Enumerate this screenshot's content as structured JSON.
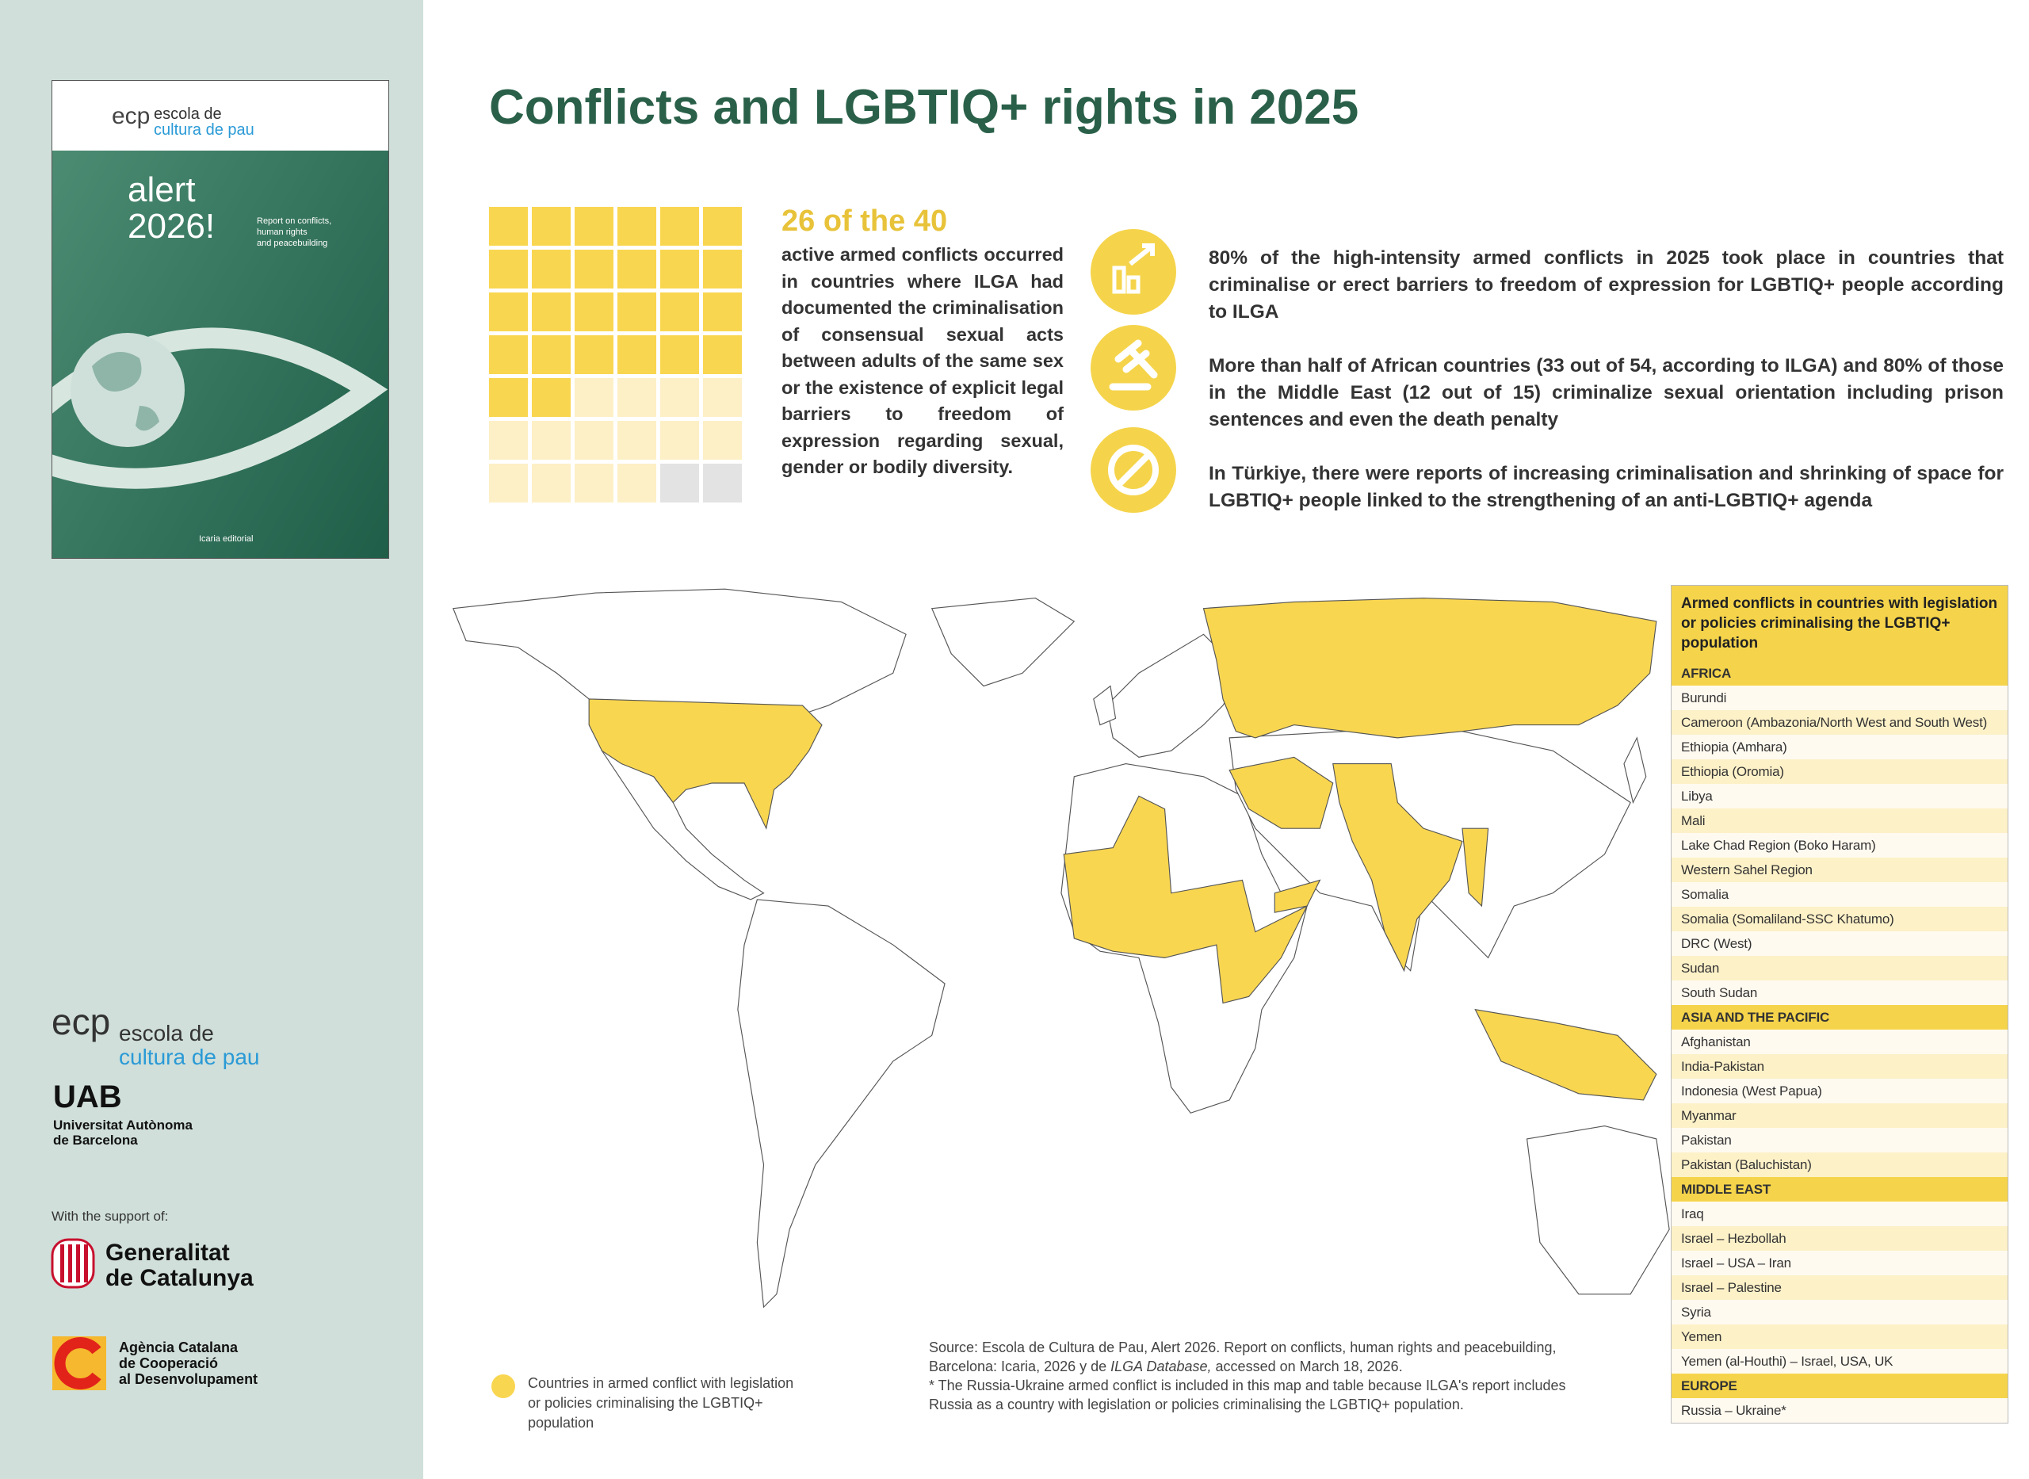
{
  "header": {
    "title": "Conflicts and LGBTIQ+ rights in 2025"
  },
  "cover": {
    "logo": "ecp",
    "brand": [
      "escola de",
      "cultura de pau"
    ],
    "title": [
      "alert",
      "2026!"
    ],
    "subtitle": [
      "Report on conflicts,",
      "human rights",
      "and peacebuilding"
    ],
    "publisher": "Icaria editorial"
  },
  "waffle": {
    "headline": "26 of the 40",
    "filled": 26,
    "total": 40,
    "text": "active armed conflicts occurred in countries where ILGA had documented the criminalisation of consensual sexual acts between adults of the same sex or the existence of explicit legal barriers to freedom of expression regarding sexual, gender or bodily diversity."
  },
  "facts": [
    "80% of the high-intensity armed conflicts in 2025 took place in countries that criminalise or erect barriers to freedom of expression for LGBTIQ+ people according to ILGA",
    "More than half of African countries (33 out of 54, according to ILGA) and 80% of those in the Middle East (12 out of 15) criminalize sexual orientation including prison sentences and even the death penalty",
    "In Türkiye, there were reports of increasing criminalisation and shrinking of space for LGBTIQ+ people linked to the strengthening of an anti-LGBTIQ+ agenda"
  ],
  "table": {
    "title": "Armed conflicts in countries with legislation or policies criminalising the LGBTIQ+ population",
    "sections": [
      {
        "name": "AFRICA",
        "rows": [
          "Burundi",
          "Cameroon (Ambazonia/North West and South West)",
          "Ethiopia (Amhara)",
          "Ethiopia (Oromia)",
          "Libya",
          "Mali",
          "Lake Chad Region (Boko Haram)",
          "Western Sahel Region",
          "Somalia",
          "Somalia (Somaliland-SSC Khatumo)",
          "DRC (West)",
          "Sudan",
          "South Sudan"
        ]
      },
      {
        "name": "ASIA AND THE PACIFIC",
        "rows": [
          "Afghanistan",
          "India-Pakistan",
          "Indonesia (West Papua)",
          "Myanmar",
          "Pakistan",
          "Pakistan (Baluchistan)"
        ]
      },
      {
        "name": "MIDDLE EAST",
        "rows": [
          "Iraq",
          "Israel – Hezbollah",
          "Israel – USA – Iran",
          "Israel – Palestine",
          "Syria",
          "Yemen",
          "Yemen (al-Houthi) – Israel, USA, UK"
        ]
      },
      {
        "name": "EUROPE",
        "rows": [
          "Russia – Ukraine*"
        ]
      }
    ]
  },
  "legend": "Countries in armed conflict with legislation or policies criminalising the LGBTIQ+ population",
  "source": [
    "Source: Escola de Cultura de Pau, Alert 2026. Report on conflicts, human rights and peacebuilding, Barcelona: Icaria, 2026 y de ",
    "ILGA Database,",
    " accessed on March 18, 2026.",
    "* The Russia-Ukraine armed conflict is included in this map and table because ILGA's report includes Russia as a country with legislation or policies criminalising the LGBTIQ+ population."
  ],
  "sidebar": {
    "logo": "ecp",
    "brand": [
      "escola de",
      "cultura de pau"
    ],
    "uab": [
      "UAB",
      "Universitat Autònoma",
      "de Barcelona"
    ],
    "support": "With the support of:",
    "generalitat": [
      "Generalitat",
      "de Catalunya"
    ],
    "accd": [
      "Agència Catalana",
      "de Cooperació",
      "al Desenvolupament"
    ]
  }
}
